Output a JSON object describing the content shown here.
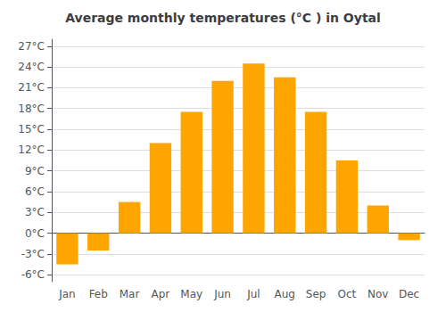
{
  "chart_data": {
    "type": "bar",
    "title": "Average monthly temperatures (°C ) in Oytal",
    "categories": [
      "Jan",
      "Feb",
      "Mar",
      "Apr",
      "May",
      "Jun",
      "Jul",
      "Aug",
      "Sep",
      "Oct",
      "Nov",
      "Dec"
    ],
    "values": [
      -4.5,
      -2.5,
      4.5,
      13.0,
      17.5,
      22.0,
      24.5,
      22.5,
      17.5,
      10.5,
      4.0,
      -1.0
    ],
    "color": "#FFA500",
    "ylim": [
      -7,
      28
    ],
    "yticks": [
      {
        "value": -6,
        "label": "-6°C"
      },
      {
        "value": -3,
        "label": "-3°C"
      },
      {
        "value": 0,
        "label": "0°C"
      },
      {
        "value": 3,
        "label": "3°C"
      },
      {
        "value": 6,
        "label": "6°C"
      },
      {
        "value": 9,
        "label": "9°C"
      },
      {
        "value": 12,
        "label": "12°C"
      },
      {
        "value": 15,
        "label": "15°C"
      },
      {
        "value": 18,
        "label": "18°C"
      },
      {
        "value": 21,
        "label": "21°C"
      },
      {
        "value": 24,
        "label": "24°C"
      },
      {
        "value": 27,
        "label": "27°C"
      }
    ],
    "grid": true
  }
}
